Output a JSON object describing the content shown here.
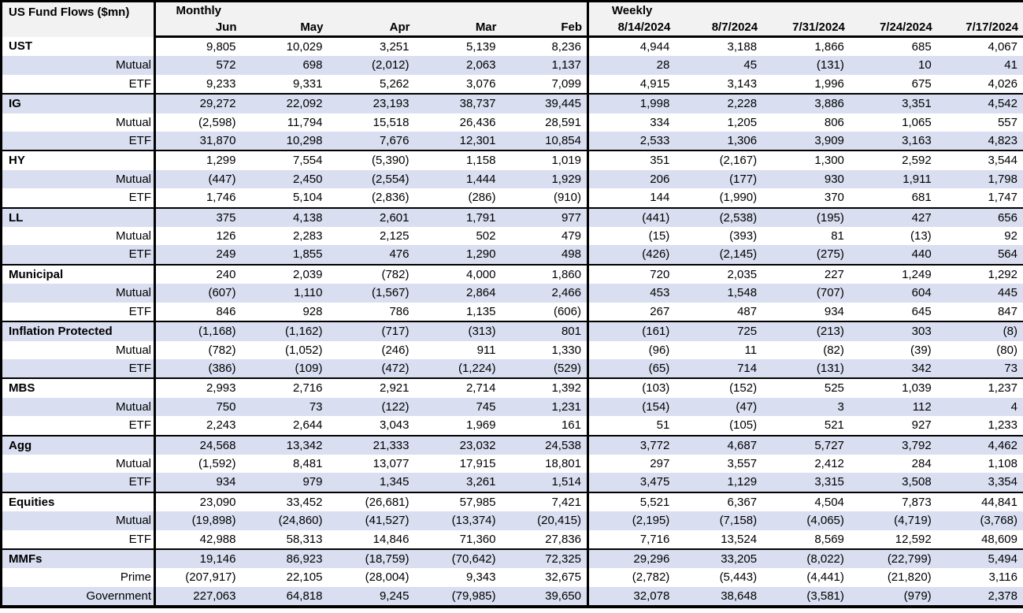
{
  "colors": {
    "row_band": "#d9def0",
    "header_bg": "#f2f2f2",
    "border": "#000000"
  },
  "table": {
    "title": "US Fund Flows ($mn)",
    "monthly_label": "Monthly",
    "weekly_label": "Weekly",
    "monthly_columns": [
      "Jun",
      "May",
      "Apr",
      "Mar",
      "Feb"
    ],
    "weekly_columns": [
      "8/14/2024",
      "8/7/2024",
      "7/31/2024",
      "7/24/2024",
      "7/17/2024"
    ],
    "rows": [
      {
        "label": "UST",
        "group": true,
        "m": [
          "9,805",
          "10,029",
          "3,251",
          "5,139",
          "8,236"
        ],
        "w": [
          "4,944",
          "3,188",
          "1,866",
          "685",
          "4,067"
        ]
      },
      {
        "label": "Mutual",
        "group": false,
        "m": [
          "572",
          "698",
          "(2,012)",
          "2,063",
          "1,137"
        ],
        "w": [
          "28",
          "45",
          "(131)",
          "10",
          "41"
        ]
      },
      {
        "label": "ETF",
        "group": false,
        "m": [
          "9,233",
          "9,331",
          "5,262",
          "3,076",
          "7,099"
        ],
        "w": [
          "4,915",
          "3,143",
          "1,996",
          "675",
          "4,026"
        ]
      },
      {
        "label": "IG",
        "group": true,
        "m": [
          "29,272",
          "22,092",
          "23,193",
          "38,737",
          "39,445"
        ],
        "w": [
          "1,998",
          "2,228",
          "3,886",
          "3,351",
          "4,542"
        ]
      },
      {
        "label": "Mutual",
        "group": false,
        "m": [
          "(2,598)",
          "11,794",
          "15,518",
          "26,436",
          "28,591"
        ],
        "w": [
          "334",
          "1,205",
          "806",
          "1,065",
          "557"
        ]
      },
      {
        "label": "ETF",
        "group": false,
        "m": [
          "31,870",
          "10,298",
          "7,676",
          "12,301",
          "10,854"
        ],
        "w": [
          "2,533",
          "1,306",
          "3,909",
          "3,163",
          "4,823"
        ]
      },
      {
        "label": "HY",
        "group": true,
        "m": [
          "1,299",
          "7,554",
          "(5,390)",
          "1,158",
          "1,019"
        ],
        "w": [
          "351",
          "(2,167)",
          "1,300",
          "2,592",
          "3,544"
        ]
      },
      {
        "label": "Mutual",
        "group": false,
        "m": [
          "(447)",
          "2,450",
          "(2,554)",
          "1,444",
          "1,929"
        ],
        "w": [
          "206",
          "(177)",
          "930",
          "1,911",
          "1,798"
        ]
      },
      {
        "label": "ETF",
        "group": false,
        "m": [
          "1,746",
          "5,104",
          "(2,836)",
          "(286)",
          "(910)"
        ],
        "w": [
          "144",
          "(1,990)",
          "370",
          "681",
          "1,747"
        ]
      },
      {
        "label": "LL",
        "group": true,
        "m": [
          "375",
          "4,138",
          "2,601",
          "1,791",
          "977"
        ],
        "w": [
          "(441)",
          "(2,538)",
          "(195)",
          "427",
          "656"
        ]
      },
      {
        "label": "Mutual",
        "group": false,
        "m": [
          "126",
          "2,283",
          "2,125",
          "502",
          "479"
        ],
        "w": [
          "(15)",
          "(393)",
          "81",
          "(13)",
          "92"
        ]
      },
      {
        "label": "ETF",
        "group": false,
        "m": [
          "249",
          "1,855",
          "476",
          "1,290",
          "498"
        ],
        "w": [
          "(426)",
          "(2,145)",
          "(275)",
          "440",
          "564"
        ]
      },
      {
        "label": "Municipal",
        "group": true,
        "m": [
          "240",
          "2,039",
          "(782)",
          "4,000",
          "1,860"
        ],
        "w": [
          "720",
          "2,035",
          "227",
          "1,249",
          "1,292"
        ]
      },
      {
        "label": "Mutual",
        "group": false,
        "m": [
          "(607)",
          "1,110",
          "(1,567)",
          "2,864",
          "2,466"
        ],
        "w": [
          "453",
          "1,548",
          "(707)",
          "604",
          "445"
        ]
      },
      {
        "label": "ETF",
        "group": false,
        "m": [
          "846",
          "928",
          "786",
          "1,135",
          "(606)"
        ],
        "w": [
          "267",
          "487",
          "934",
          "645",
          "847"
        ]
      },
      {
        "label": "Inflation Protected",
        "group": true,
        "m": [
          "(1,168)",
          "(1,162)",
          "(717)",
          "(313)",
          "801"
        ],
        "w": [
          "(161)",
          "725",
          "(213)",
          "303",
          "(8)"
        ]
      },
      {
        "label": "Mutual",
        "group": false,
        "m": [
          "(782)",
          "(1,052)",
          "(246)",
          "911",
          "1,330"
        ],
        "w": [
          "(96)",
          "11",
          "(82)",
          "(39)",
          "(80)"
        ]
      },
      {
        "label": "ETF",
        "group": false,
        "m": [
          "(386)",
          "(109)",
          "(472)",
          "(1,224)",
          "(529)"
        ],
        "w": [
          "(65)",
          "714",
          "(131)",
          "342",
          "73"
        ]
      },
      {
        "label": "MBS",
        "group": true,
        "m": [
          "2,993",
          "2,716",
          "2,921",
          "2,714",
          "1,392"
        ],
        "w": [
          "(103)",
          "(152)",
          "525",
          "1,039",
          "1,237"
        ]
      },
      {
        "label": "Mutual",
        "group": false,
        "m": [
          "750",
          "73",
          "(122)",
          "745",
          "1,231"
        ],
        "w": [
          "(154)",
          "(47)",
          "3",
          "112",
          "4"
        ]
      },
      {
        "label": "ETF",
        "group": false,
        "m": [
          "2,243",
          "2,644",
          "3,043",
          "1,969",
          "161"
        ],
        "w": [
          "51",
          "(105)",
          "521",
          "927",
          "1,233"
        ]
      },
      {
        "label": "Agg",
        "group": true,
        "m": [
          "24,568",
          "13,342",
          "21,333",
          "23,032",
          "24,538"
        ],
        "w": [
          "3,772",
          "4,687",
          "5,727",
          "3,792",
          "4,462"
        ]
      },
      {
        "label": "Mutual",
        "group": false,
        "m": [
          "(1,592)",
          "8,481",
          "13,077",
          "17,915",
          "18,801"
        ],
        "w": [
          "297",
          "3,557",
          "2,412",
          "284",
          "1,108"
        ]
      },
      {
        "label": "ETF",
        "group": false,
        "m": [
          "934",
          "979",
          "1,345",
          "3,261",
          "1,514"
        ],
        "w": [
          "3,475",
          "1,129",
          "3,315",
          "3,508",
          "3,354"
        ]
      },
      {
        "label": "Equities",
        "group": true,
        "m": [
          "23,090",
          "33,452",
          "(26,681)",
          "57,985",
          "7,421"
        ],
        "w": [
          "5,521",
          "6,367",
          "4,504",
          "7,873",
          "44,841"
        ]
      },
      {
        "label": "Mutual",
        "group": false,
        "m": [
          "(19,898)",
          "(24,860)",
          "(41,527)",
          "(13,374)",
          "(20,415)"
        ],
        "w": [
          "(2,195)",
          "(7,158)",
          "(4,065)",
          "(4,719)",
          "(3,768)"
        ]
      },
      {
        "label": "ETF",
        "group": false,
        "m": [
          "42,988",
          "58,313",
          "14,846",
          "71,360",
          "27,836"
        ],
        "w": [
          "7,716",
          "13,524",
          "8,569",
          "12,592",
          "48,609"
        ]
      },
      {
        "label": "MMFs",
        "group": true,
        "m": [
          "19,146",
          "86,923",
          "(18,759)",
          "(70,642)",
          "72,325"
        ],
        "w": [
          "29,296",
          "33,205",
          "(8,022)",
          "(22,799)",
          "5,494"
        ]
      },
      {
        "label": "Prime",
        "group": false,
        "m": [
          "(207,917)",
          "22,105",
          "(28,004)",
          "9,343",
          "32,675"
        ],
        "w": [
          "(2,782)",
          "(5,443)",
          "(4,441)",
          "(21,820)",
          "3,116"
        ]
      },
      {
        "label": "Government",
        "group": false,
        "m": [
          "227,063",
          "64,818",
          "9,245",
          "(79,985)",
          "39,650"
        ],
        "w": [
          "32,078",
          "38,648",
          "(3,581)",
          "(979)",
          "2,378"
        ]
      }
    ]
  }
}
